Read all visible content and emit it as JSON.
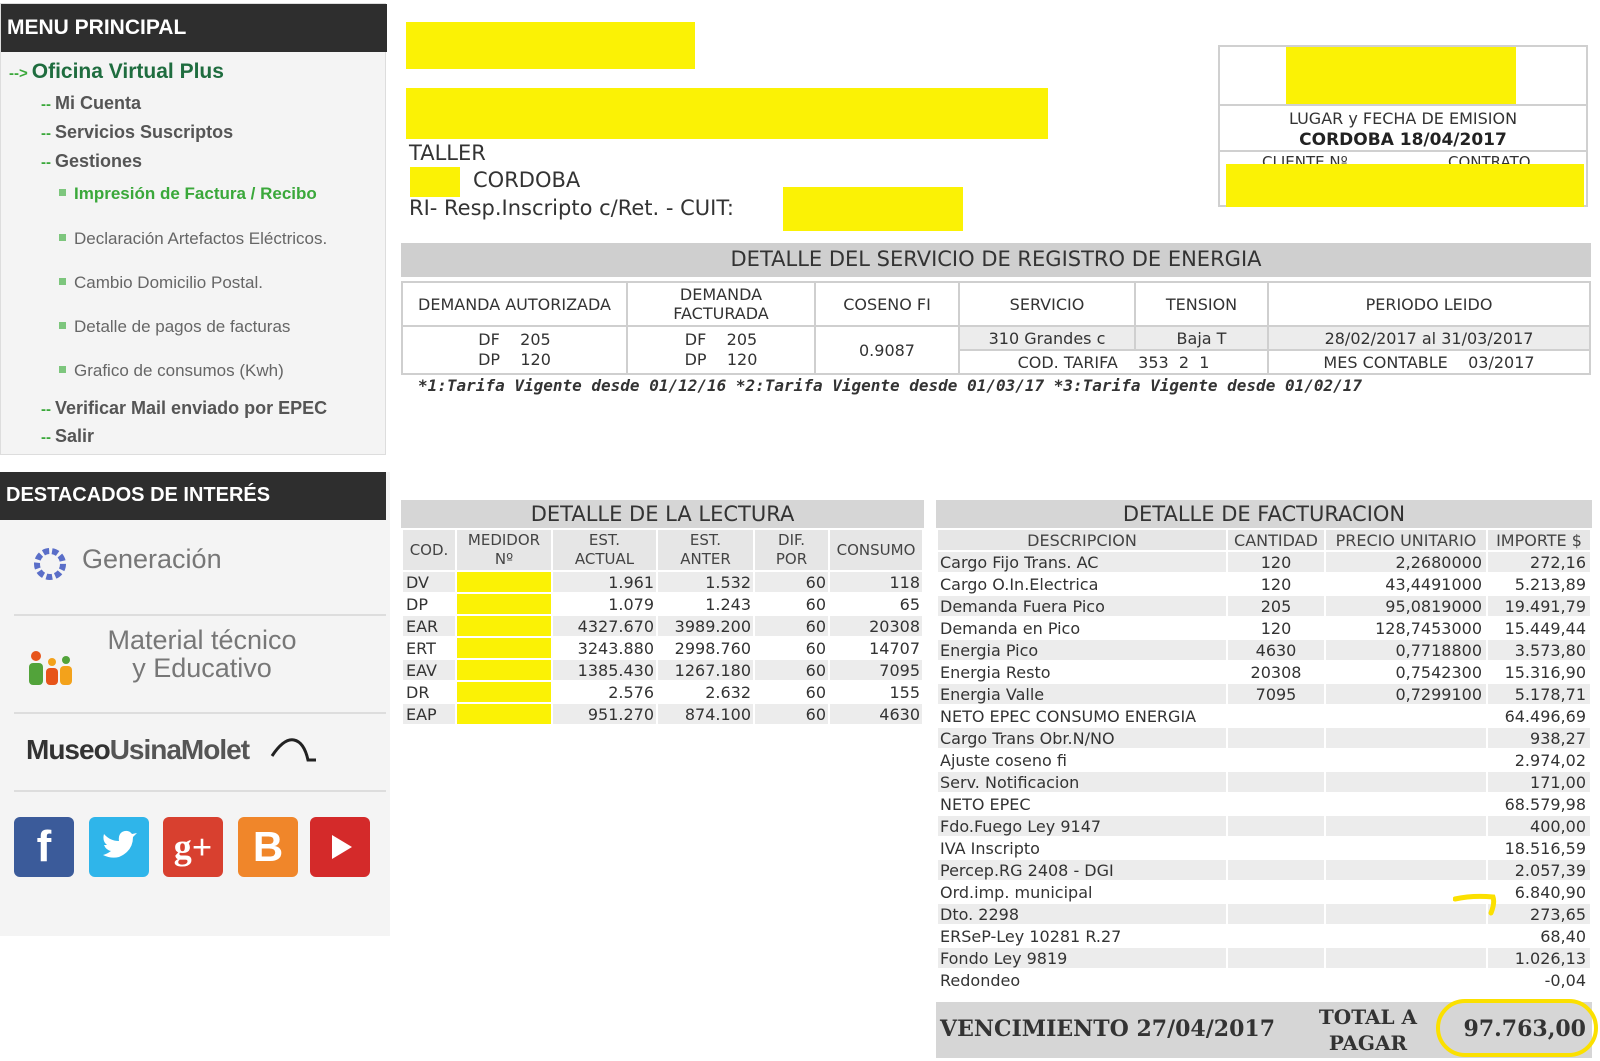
{
  "sidebar": {
    "menu_title": "MENU PRINCIPAL",
    "items": [
      {
        "label": "Oficina Virtual Plus"
      },
      {
        "label": "Mi Cuenta"
      },
      {
        "label": "Servicios Suscriptos"
      },
      {
        "label": "Gestiones"
      },
      {
        "label": "Impresión de Factura / Recibo"
      },
      {
        "label": "Declaración Artefactos Eléctricos."
      },
      {
        "label": "Cambio Domicilio Postal."
      },
      {
        "label": "Detalle de pagos de facturas"
      },
      {
        "label": "Grafico de consumos (Kwh)"
      },
      {
        "label": "Verificar Mail enviado por EPEC"
      },
      {
        "label": "Salir"
      }
    ],
    "destacados_title": "DESTACADOS DE INTERÉS",
    "destacados": {
      "generacion": "Generación",
      "material_line1": "Material técnico",
      "material_line2": "y Educativo",
      "museo_a": "Museo",
      "museo_b": "UsinaMolet"
    },
    "social": [
      "facebook-icon",
      "twitter-icon",
      "google-plus-icon",
      "blogger-icon",
      "youtube-icon"
    ]
  },
  "header": {
    "line_taller": "TALLER",
    "line_city": "CORDOBA",
    "line_iva": "RI- Resp.Inscripto c/Ret. - CUIT:",
    "emision_label": "LUGAR y FECHA DE EMISION",
    "emision_value": "CORDOBA 18/04/2017",
    "cliente_label": "CLIENTE Nº",
    "contrato_label": "CONTRATO",
    "redaction_color": "#fbf205"
  },
  "registro": {
    "title": "DETALLE DEL SERVICIO DE REGISTRO DE ENERGIA",
    "headers": {
      "demanda_autorizada": "DEMANDA AUTORIZADA",
      "demanda_facturada_1": "DEMANDA",
      "demanda_facturada_2": "FACTURADA",
      "coseno": "COSENO FI",
      "servicio": "SERVICIO",
      "tension": "TENSION",
      "periodo": "PERIODO LEIDO"
    },
    "values": {
      "aut_df_label": "DF",
      "aut_df": "205",
      "aut_dp_label": "DP",
      "aut_dp": "120",
      "fac_df_label": "DF",
      "fac_df": "205",
      "fac_dp_label": "DP",
      "fac_dp": "120",
      "coseno": "0.9087",
      "servicio": "310 Grandes c",
      "tension": "Baja T",
      "periodo": "28/02/2017 al 31/03/2017",
      "cod_tarifa": "COD. TARIFA    353  2  1",
      "mes_contable": "MES CONTABLE    03/2017"
    },
    "note": "*1:Tarifa Vigente desde 01/12/16 *2:Tarifa Vigente desde 01/03/17 *3:Tarifa Vigente desde 01/02/17"
  },
  "lectura": {
    "title": "DETALLE DE LA LECTURA",
    "headers": {
      "cod": "COD.",
      "medidor_1": "MEDIDOR",
      "medidor_2": "Nº",
      "est_actual_1": "EST.",
      "est_actual_2": "ACTUAL",
      "est_anter_1": "EST.",
      "est_anter_2": "ANTER",
      "dif_1": "DIF.",
      "dif_2": "POR",
      "consumo": "CONSUMO"
    },
    "rows": [
      {
        "cod": "DV",
        "actual": "1.961",
        "anter": "1.532",
        "dif": "60",
        "consumo": "118"
      },
      {
        "cod": "DP",
        "actual": "1.079",
        "anter": "1.243",
        "dif": "60",
        "consumo": "65"
      },
      {
        "cod": "EAR",
        "actual": "4327.670",
        "anter": "3989.200",
        "dif": "60",
        "consumo": "20308"
      },
      {
        "cod": "ERT",
        "actual": "3243.880",
        "anter": "2998.760",
        "dif": "60",
        "consumo": "14707"
      },
      {
        "cod": "EAV",
        "actual": "1385.430",
        "anter": "1267.180",
        "dif": "60",
        "consumo": "7095"
      },
      {
        "cod": "DR",
        "actual": "2.576",
        "anter": "2.632",
        "dif": "60",
        "consumo": "155"
      },
      {
        "cod": "EAP",
        "actual": "951.270",
        "anter": "874.100",
        "dif": "60",
        "consumo": "4630"
      }
    ]
  },
  "facturacion": {
    "title": "DETALLE DE FACTURACION",
    "headers": {
      "descripcion": "DESCRIPCION",
      "cantidad": "CANTIDAD",
      "precio": "PRECIO UNITARIO",
      "importe": "IMPORTE $"
    },
    "rows": [
      {
        "desc": "Cargo Fijo Trans. AC",
        "cant": "120",
        "precio": "2,2680000",
        "importe": "272,16"
      },
      {
        "desc": "Cargo O.In.Electrica",
        "cant": "120",
        "precio": "43,4491000",
        "importe": "5.213,89"
      },
      {
        "desc": "Demanda Fuera Pico",
        "cant": "205",
        "precio": "95,0819000",
        "importe": "19.491,79"
      },
      {
        "desc": "Demanda en Pico",
        "cant": "120",
        "precio": "128,7453000",
        "importe": "15.449,44"
      },
      {
        "desc": "Energia Pico",
        "cant": "4630",
        "precio": "0,7718800",
        "importe": "3.573,80"
      },
      {
        "desc": "Energia Resto",
        "cant": "20308",
        "precio": "0,7542300",
        "importe": "15.316,90"
      },
      {
        "desc": "Energia Valle",
        "cant": "7095",
        "precio": "0,7299100",
        "importe": "5.178,71"
      },
      {
        "desc": "NETO EPEC CONSUMO ENERGIA",
        "cant": "",
        "precio": "",
        "importe": "64.496,69"
      },
      {
        "desc": "Cargo Trans Obr.N/NO",
        "cant": "",
        "precio": "",
        "importe": "938,27"
      },
      {
        "desc": "Ajuste coseno fi",
        "cant": "",
        "precio": "",
        "importe": "2.974,02"
      },
      {
        "desc": "Serv. Notificacion",
        "cant": "",
        "precio": "",
        "importe": "171,00"
      },
      {
        "desc": "NETO EPEC",
        "cant": "",
        "precio": "",
        "importe": "68.579,98"
      },
      {
        "desc": "Fdo.Fuego Ley 9147",
        "cant": "",
        "precio": "",
        "importe": "400,00"
      },
      {
        "desc": "IVA Inscripto",
        "cant": "",
        "precio": "",
        "importe": "18.516,59"
      },
      {
        "desc": "Percep.RG 2408 - DGI",
        "cant": "",
        "precio": "",
        "importe": "2.057,39"
      },
      {
        "desc": "Ord.imp. municipal",
        "cant": "",
        "precio": "",
        "importe": "6.840,90"
      },
      {
        "desc": "Dto. 2298",
        "cant": "",
        "precio": "",
        "importe": "273,65"
      },
      {
        "desc": "ERSeP-Ley 10281 R.27",
        "cant": "",
        "precio": "",
        "importe": "68,40"
      },
      {
        "desc": "Fondo Ley 9819",
        "cant": "",
        "precio": "",
        "importe": "1.026,13"
      },
      {
        "desc": "Redondeo",
        "cant": "",
        "precio": "",
        "importe": "-0,04"
      }
    ],
    "vencimiento": "VENCIMIENTO 27/04/2017",
    "total_label_1": "TOTAL A",
    "total_label_2": "PAGAR",
    "total_value": "97.763,00",
    "highlight_color": "#fbe000"
  }
}
